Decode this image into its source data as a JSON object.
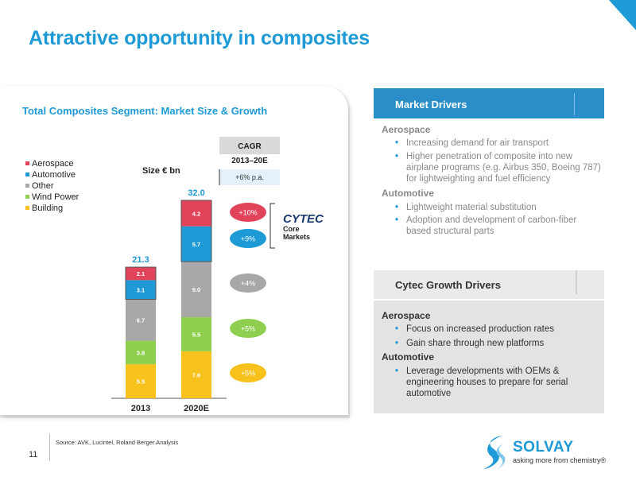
{
  "title": "Attractive opportunity in composites",
  "page_number": "11",
  "source": "Source:  AVK, Lucintel, Roland Berger Analysis",
  "logo": {
    "word": "SOLVAY",
    "tagline": "asking more from chemistry®"
  },
  "chart_data": {
    "type": "bar",
    "title": "Total Composites Segment: Market Size & Growth",
    "size_label": "Size € bn",
    "categories": [
      "2013",
      "2020E"
    ],
    "totals": [
      "21.3",
      "32.0"
    ],
    "series": [
      {
        "name": "Building",
        "values": [
          5.5,
          7.6
        ],
        "color": "#f7c21c",
        "cagr": "+5%",
        "cagr_color": "#f7c21c"
      },
      {
        "name": "Wind Power",
        "values": [
          3.8,
          5.5
        ],
        "color": "#8fcf50",
        "cagr": "+5%",
        "cagr_color": "#8fcf50"
      },
      {
        "name": "Other",
        "values": [
          6.7,
          9.0
        ],
        "color": "#a8a8a8",
        "cagr": "+4%",
        "cagr_color": "#a8a8a8"
      },
      {
        "name": "Automotive",
        "values": [
          3.1,
          5.7
        ],
        "color": "#1e9ad6",
        "cagr": "+9%",
        "cagr_color": "#1e9ad6"
      },
      {
        "name": "Aerospace",
        "values": [
          2.1,
          4.2
        ],
        "color": "#e0435a",
        "cagr": "+10%",
        "cagr_color": "#e0435a"
      }
    ],
    "legend_order": [
      "Aerospace",
      "Automotive",
      "Other",
      "Wind Power",
      "Building"
    ],
    "cagr_header": "CAGR",
    "cagr_period": "2013–20E",
    "cagr_total": "+6% p.a.",
    "cytec_logo": "CYTEC",
    "cytec_label": "Core Markets",
    "ylim": [
      0,
      32
    ]
  },
  "market_drivers": {
    "header": "Market Drivers",
    "sections": [
      {
        "title": "Aerospace",
        "bullets": [
          "Increasing demand for air transport",
          "Higher penetration of composite into new airplane programs (e.g. Airbus 350, Boeing 787) for lightweighting and fuel efficiency"
        ]
      },
      {
        "title": "Automotive",
        "bullets": [
          "Lightweight material substitution",
          "Adoption and development of carbon-fiber based structural parts"
        ]
      }
    ]
  },
  "cytec_drivers": {
    "header": "Cytec Growth Drivers",
    "sections": [
      {
        "title": "Aerospace",
        "bullets": [
          "Focus on increased production rates",
          "Gain share through new platforms"
        ]
      },
      {
        "title": "Automotive",
        "bullets": [
          "Leverage developments with OEMs & engineering houses to prepare for serial automotive"
        ]
      }
    ]
  }
}
